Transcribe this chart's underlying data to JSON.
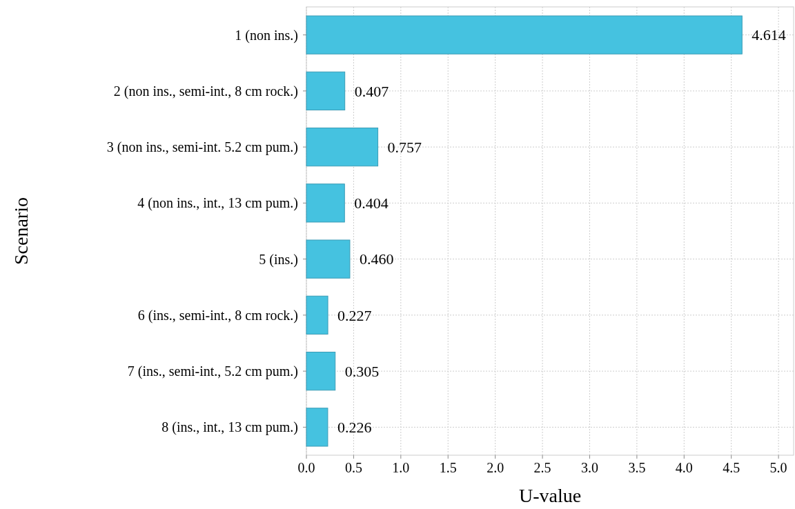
{
  "chart_data": {
    "type": "bar",
    "orientation": "horizontal",
    "xlabel": "U-value",
    "ylabel": "Scenario",
    "categories": [
      "1 (non ins.)",
      "2 (non ins., semi-int., 8 cm rock.)",
      "3 (non ins., semi-int. 5.2 cm pum.)",
      "4 (non ins., int., 13 cm pum.)",
      "5 (ins.)",
      "6 (ins., semi-int., 8 cm rock.)",
      "7 (ins., semi-int., 5.2 cm pum.)",
      "8 (ins., int., 13 cm pum.)"
    ],
    "values": [
      4.614,
      0.407,
      0.757,
      0.404,
      0.46,
      0.227,
      0.305,
      0.226
    ],
    "value_labels": [
      "4.614",
      "0.407",
      "0.757",
      "0.404",
      "0.460",
      "0.227",
      "0.305",
      "0.226"
    ],
    "color": "#45c2e0",
    "xlim": [
      0,
      5.16
    ],
    "xticks": [
      {
        "value": 0,
        "label": "0.0"
      },
      0.5,
      {
        "value": 1,
        "label": "1.0"
      },
      1.5,
      {
        "value": 2,
        "label": "2.0"
      },
      2.5,
      {
        "value": 3,
        "label": "3.0"
      },
      3.5,
      {
        "value": 4,
        "label": "4.0"
      },
      4.5,
      {
        "value": 5,
        "label": "5.0"
      }
    ],
    "grid": true
  }
}
